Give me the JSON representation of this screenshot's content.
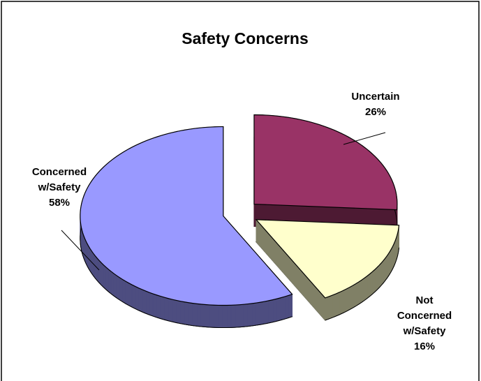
{
  "chart_data": {
    "type": "pie",
    "title": "Safety Concerns",
    "categories": [
      "Uncertain",
      "Not Concerned w/Safety",
      "Concerned w/Safety"
    ],
    "values": [
      26,
      16,
      58
    ],
    "value_labels": [
      "26%",
      "16%",
      "58%"
    ],
    "colors": [
      "#993366",
      "#ffffcc",
      "#9999ff"
    ]
  }
}
